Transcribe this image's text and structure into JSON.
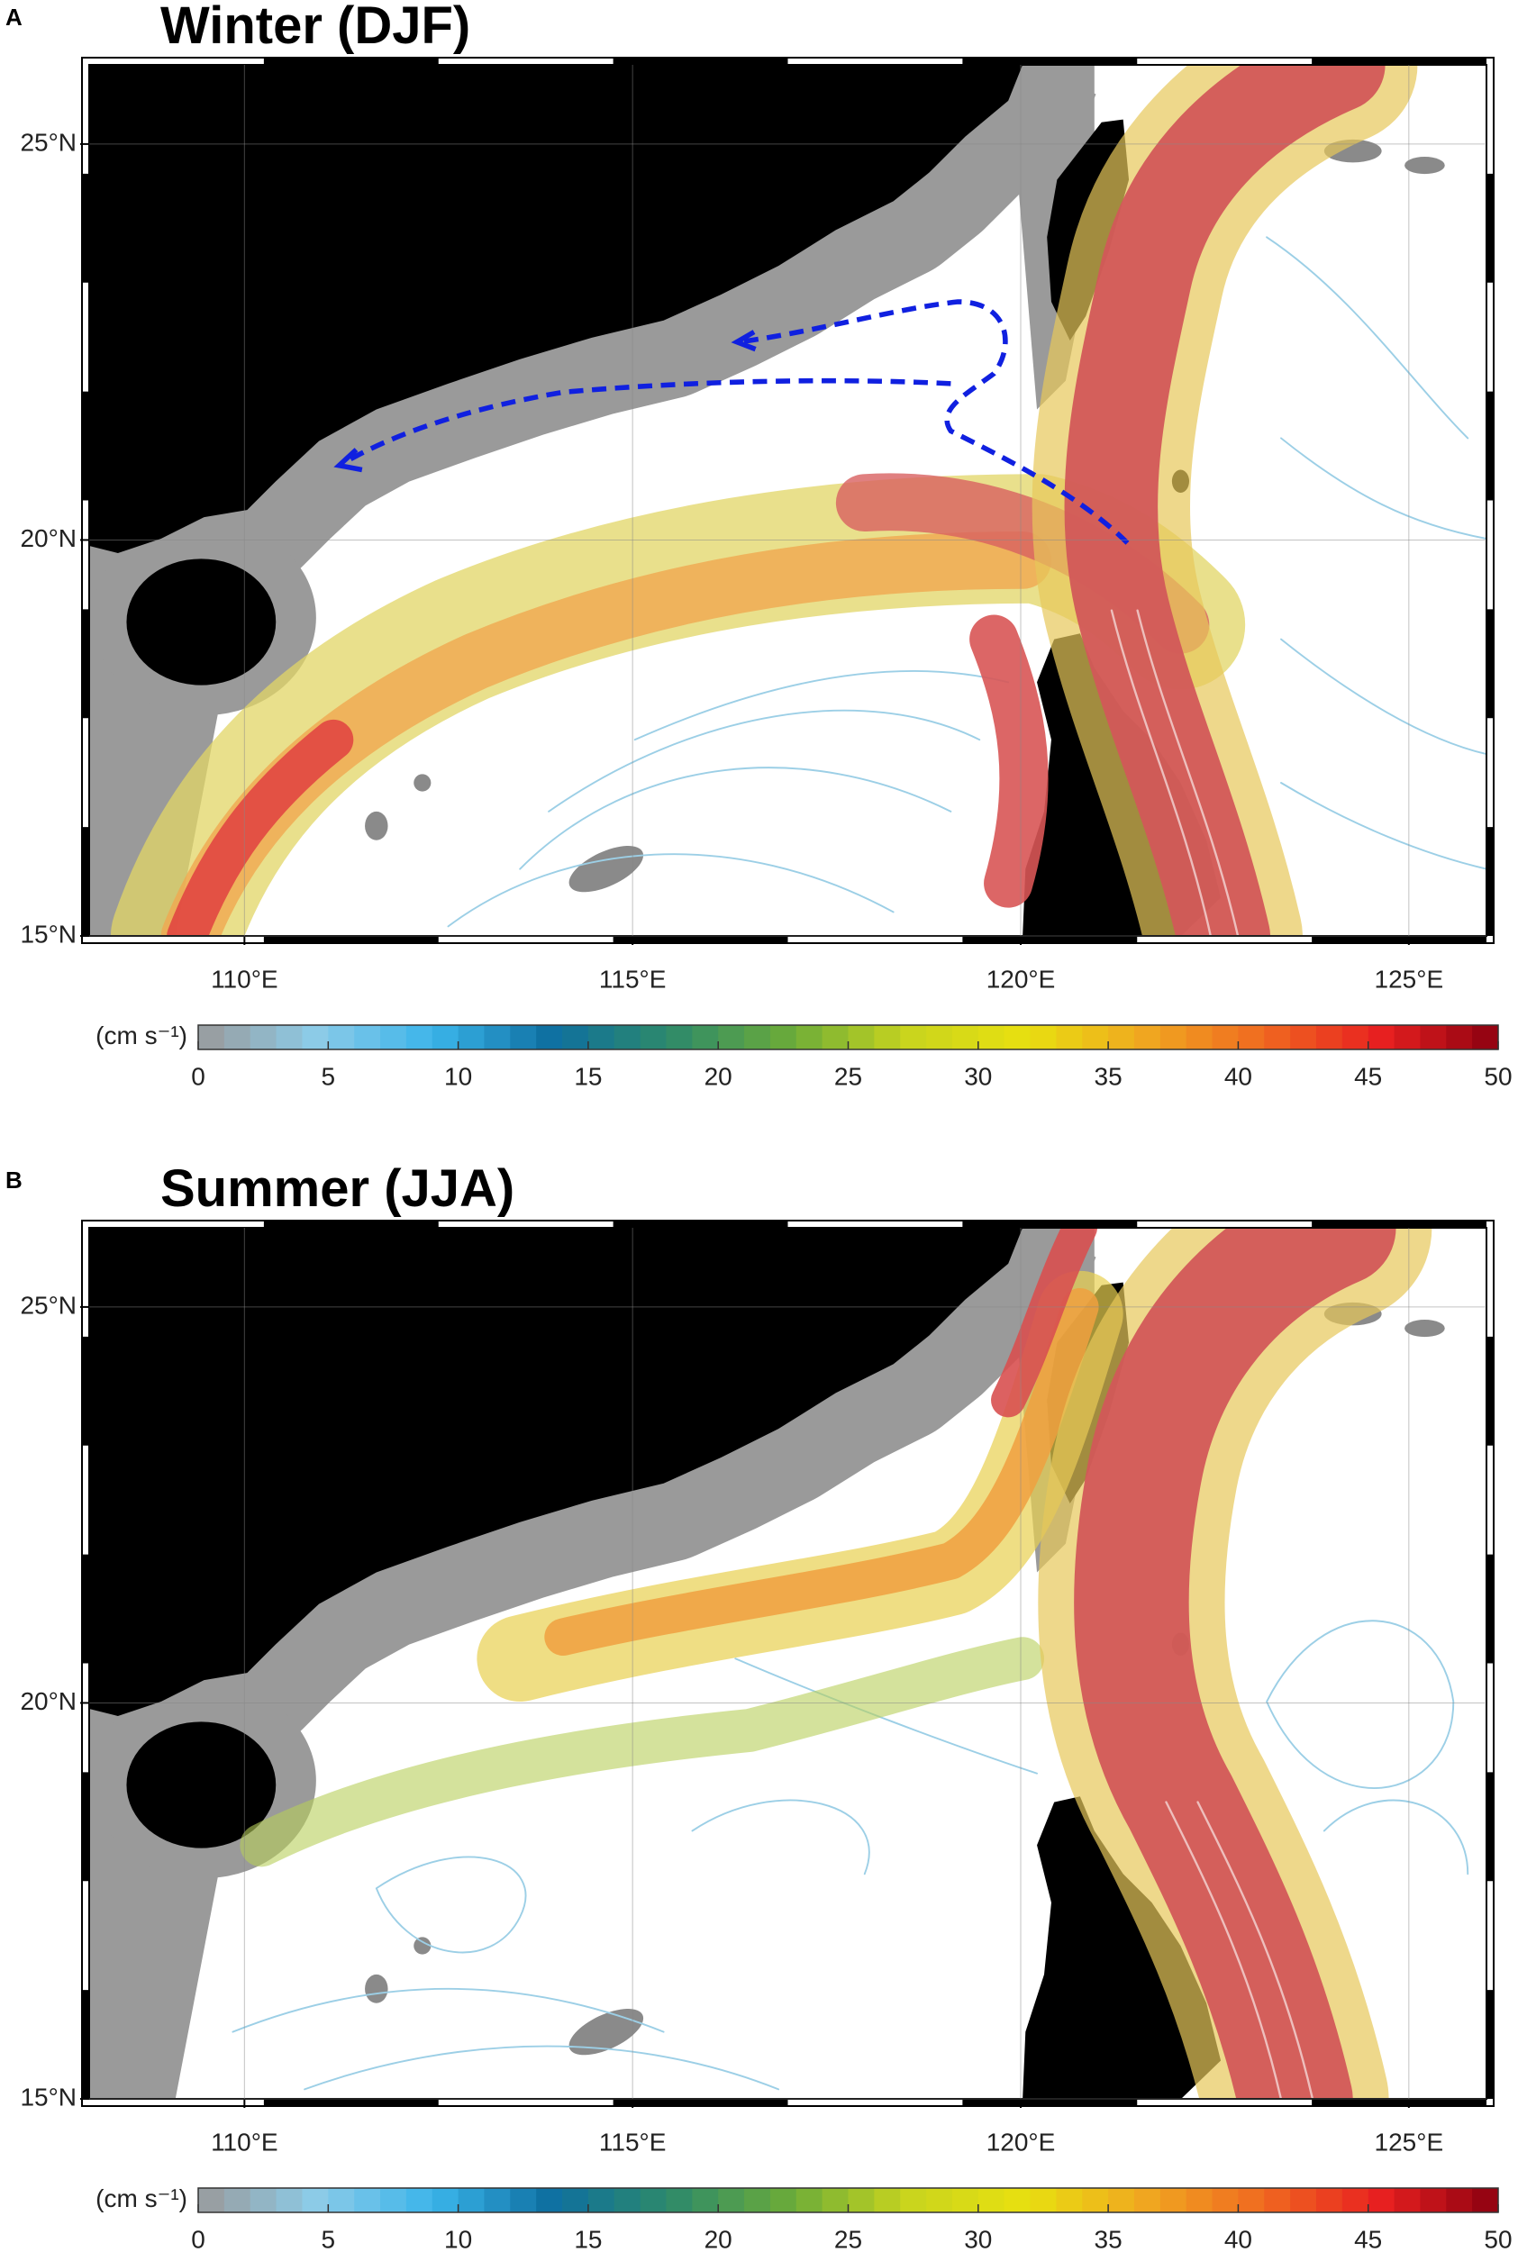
{
  "panels": [
    {
      "label": "A",
      "title": "Winter (DJF)",
      "xlim": [
        108,
        126
      ],
      "ylim": [
        15,
        26
      ],
      "xticks": [
        {
          "value": 110,
          "label": "110°E"
        },
        {
          "value": 115,
          "label": "115°E"
        },
        {
          "value": 120,
          "label": "120°E"
        },
        {
          "value": 125,
          "label": "125°E"
        }
      ],
      "yticks": [
        {
          "value": 15,
          "label": "15°N"
        },
        {
          "value": 20,
          "label": "20°N"
        },
        {
          "value": 25,
          "label": "25°N"
        }
      ],
      "colorbar": {
        "unit": "(cm s⁻¹)",
        "lim": [
          0,
          50
        ],
        "ticks": [
          0,
          5,
          10,
          15,
          20,
          25,
          30,
          35,
          40,
          45,
          50
        ],
        "colors": [
          "#9a9a9a",
          "#8ccbe8",
          "#3ab4ea",
          "#0e6fa0",
          "#2e8a6a",
          "#6aab3a",
          "#c8d41e",
          "#e8e010",
          "#f0a820",
          "#f06a20",
          "#e82020",
          "#8c0010"
        ]
      }
    },
    {
      "label": "B",
      "title": "Summer (JJA)",
      "xlim": [
        108,
        126
      ],
      "ylim": [
        15,
        26
      ],
      "xticks": [
        {
          "value": 110,
          "label": "110°E"
        },
        {
          "value": 115,
          "label": "115°E"
        },
        {
          "value": 120,
          "label": "120°E"
        },
        {
          "value": 125,
          "label": "125°E"
        }
      ],
      "yticks": [
        {
          "value": 15,
          "label": "15°N"
        },
        {
          "value": 20,
          "label": "20°N"
        },
        {
          "value": 25,
          "label": "25°N"
        }
      ],
      "colorbar": {
        "unit": "(cm s⁻¹)",
        "lim": [
          0,
          50
        ],
        "ticks": [
          0,
          5,
          10,
          15,
          20,
          25,
          30,
          35,
          40,
          45,
          50
        ],
        "colors": [
          "#9a9a9a",
          "#8ccbe8",
          "#3ab4ea",
          "#0e6fa0",
          "#2e8a6a",
          "#6aab3a",
          "#c8d41e",
          "#e8e010",
          "#f0a820",
          "#f06a20",
          "#e82020",
          "#8c0010"
        ]
      }
    }
  ]
}
